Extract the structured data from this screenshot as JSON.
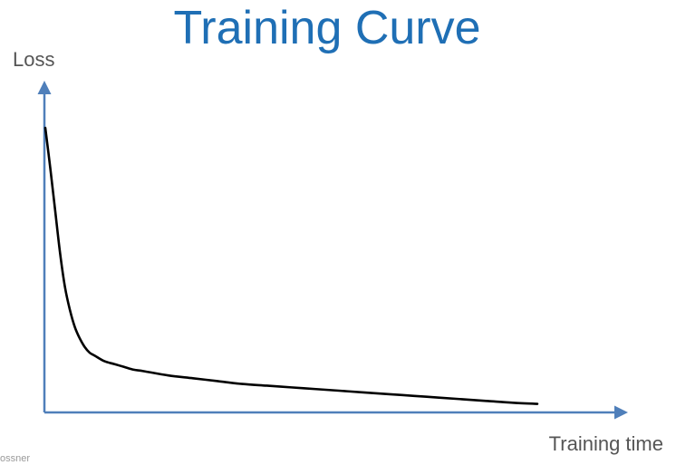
{
  "slide": {
    "title": "Training Curve",
    "footer_text": "ossner"
  },
  "colors": {
    "title": "#1f6fb5",
    "axis": "#4f7fba",
    "curve": "#000000"
  },
  "chart_data": {
    "type": "line",
    "title": "Training Curve",
    "xlabel": "Training time",
    "ylabel": "Loss",
    "xlim": [
      0,
      100
    ],
    "ylim": [
      0,
      100
    ],
    "grid": false,
    "ticks": false,
    "series": [
      {
        "x": [
          0,
          1,
          2,
          3,
          4,
          5,
          6,
          7,
          8,
          9,
          10,
          12,
          14,
          16,
          18,
          20,
          25,
          30,
          35,
          40,
          45,
          50,
          55,
          60,
          65,
          70,
          75,
          80,
          85,
          90,
          95,
          100
        ],
        "y": [
          100,
          86,
          71,
          56,
          44,
          36,
          30,
          26,
          23,
          21,
          20,
          18,
          17,
          16,
          15,
          14.5,
          13,
          12,
          11,
          10,
          9.4,
          8.8,
          8.2,
          7.6,
          7,
          6.4,
          5.8,
          5.2,
          4.6,
          4,
          3.4,
          3
        ]
      }
    ]
  }
}
